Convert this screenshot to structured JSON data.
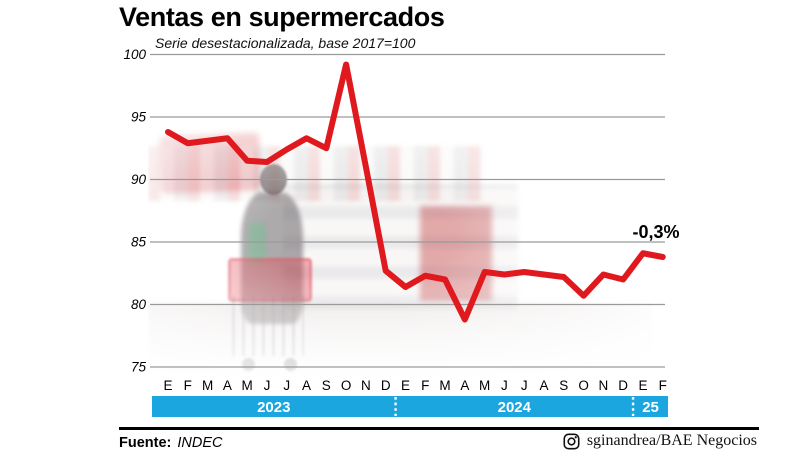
{
  "title": "Ventas en supermercados",
  "subtitle": "Serie desestacionalizada, base 2017=100",
  "footer": {
    "source_label": "Fuente:",
    "source_value": "INDEC",
    "credit": "sginandrea/BAE Negocios",
    "credit_icon": "instagram-icon"
  },
  "colors": {
    "line": "#e0191f",
    "year_bar": "#1ca6e0",
    "grid": "#9a9a9a",
    "text": "#000000"
  },
  "chart_data": {
    "type": "line",
    "title": "Ventas en supermercados",
    "subtitle": "Serie desestacionalizada, base 2017=100",
    "x_months": [
      "E",
      "F",
      "M",
      "A",
      "M",
      "J",
      "J",
      "A",
      "S",
      "O",
      "N",
      "D",
      "E",
      "F",
      "M",
      "A",
      "M",
      "J",
      "J",
      "A",
      "S",
      "O",
      "N",
      "D",
      "E",
      "F"
    ],
    "year_groups": [
      {
        "label": "2023",
        "months": 12
      },
      {
        "label": "2024",
        "months": 12
      },
      {
        "label": "25",
        "months": 2
      }
    ],
    "series": [
      {
        "name": "Ventas en supermercados, serie desestacionalizada",
        "values": [
          93.8,
          92.9,
          93.1,
          93.3,
          91.5,
          91.4,
          92.4,
          93.3,
          92.5,
          99.2,
          91.0,
          82.7,
          81.4,
          82.3,
          82.0,
          78.8,
          82.6,
          82.4,
          82.6,
          82.4,
          82.2,
          80.7,
          82.4,
          82.0,
          84.1,
          83.8
        ]
      }
    ],
    "ylim": [
      75,
      100
    ],
    "yticks": [
      100,
      95,
      90,
      85,
      80,
      75
    ],
    "grid": true,
    "legend_position": "none",
    "last_point_annotation": "-0,3%"
  }
}
